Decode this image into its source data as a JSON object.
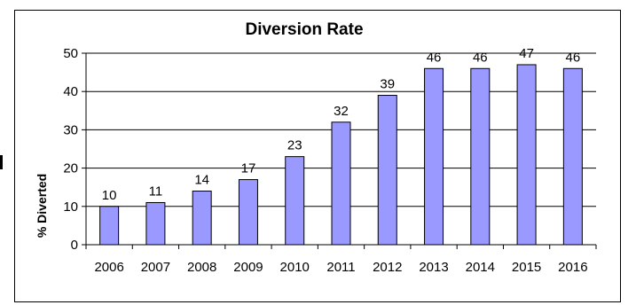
{
  "chart_data": {
    "type": "bar",
    "title": "Diversion Rate",
    "xlabel": "",
    "ylabel": "% Diverted",
    "categories": [
      "2006",
      "2007",
      "2008",
      "2009",
      "2010",
      "2011",
      "2012",
      "2013",
      "2014",
      "2015",
      "2016"
    ],
    "values": [
      10,
      11,
      14,
      17,
      23,
      32,
      39,
      46,
      46,
      47,
      46
    ],
    "ylim": [
      0,
      50
    ],
    "yticks": [
      0,
      10,
      20,
      30,
      40,
      50
    ],
    "grid": true,
    "legend": "none",
    "bar_color": "#9999FF",
    "bar_stroke": "#000000"
  }
}
